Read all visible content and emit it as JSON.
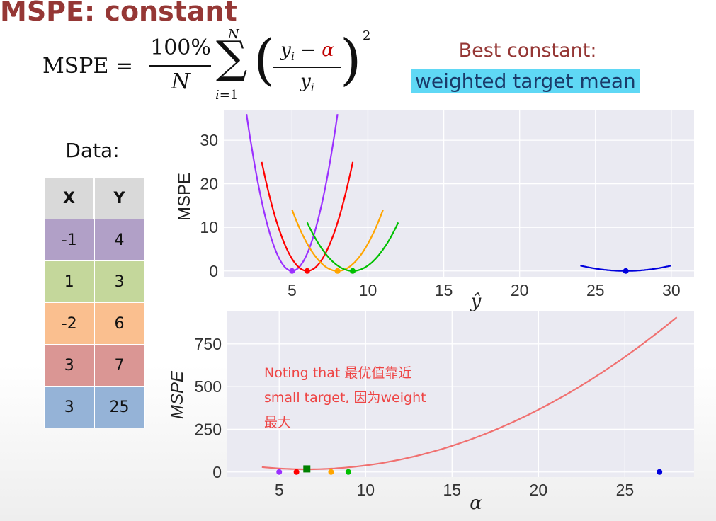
{
  "slide": {
    "title": "MSPE: constant",
    "best_label": "Best constant:",
    "best_highlight": "weighted target mean",
    "note": "Noting that 最优值靠近small target, 因为weight最大"
  },
  "formula": {
    "lhs": "MSPE =",
    "numerator": "100%",
    "denominator": "N",
    "sum_upper": "N",
    "sum_lower": "i=1",
    "inner_num_left": "y",
    "inner_num_sub": "i",
    "inner_minus": " − ",
    "inner_alpha": "α",
    "inner_den": "y",
    "inner_den_sub": "i",
    "exponent": "2"
  },
  "data_table": {
    "caption": "Data:",
    "headers": [
      "X",
      "Y"
    ],
    "rows": [
      {
        "x": "-1",
        "y": "4",
        "color": "#b1a0c7"
      },
      {
        "x": "1",
        "y": "3",
        "color": "#c4d79b"
      },
      {
        "x": "-2",
        "y": "6",
        "color": "#fabf8f"
      },
      {
        "x": "3",
        "y": "7",
        "color": "#da9694"
      },
      {
        "x": "3",
        "y": "25",
        "color": "#95b3d7"
      }
    ]
  },
  "chart_data": [
    {
      "type": "line",
      "xlabel": "ŷ",
      "ylabel": "MSPE",
      "xlim": [
        0.5,
        31.5
      ],
      "ylim": [
        -1.5,
        37
      ],
      "xticks": [
        5,
        10,
        15,
        20,
        25,
        30
      ],
      "yticks": [
        0,
        10,
        20,
        30
      ],
      "grid": true,
      "series": [
        {
          "color": "#9b30ff",
          "target": 5,
          "x_range": [
            2,
            8
          ],
          "min_point": [
            5,
            0
          ]
        },
        {
          "color": "#ff0000",
          "target": 6,
          "x_range": [
            3,
            9
          ],
          "min_point": [
            6,
            0
          ]
        },
        {
          "color": "#ffa500",
          "target": 8,
          "x_range": [
            5,
            11
          ],
          "min_point": [
            8,
            0
          ]
        },
        {
          "color": "#00c000",
          "target": 9,
          "x_range": [
            6,
            12
          ],
          "min_point": [
            9,
            0
          ]
        },
        {
          "color": "#0000dd",
          "target": 27,
          "x_range": [
            24,
            30
          ],
          "min_point": [
            27,
            0
          ]
        }
      ]
    },
    {
      "type": "line",
      "xlabel": "α",
      "ylabel": "MSPE",
      "xlim": [
        2.0,
        29.0
      ],
      "ylim": [
        -30,
        940
      ],
      "xticks": [
        5,
        10,
        15,
        20,
        25
      ],
      "yticks": [
        0,
        250,
        500,
        750
      ],
      "grid": true,
      "curve": {
        "color": "#f07070",
        "x_range": [
          4,
          28
        ],
        "targets": [
          5,
          6,
          8,
          9,
          27
        ]
      },
      "points": [
        {
          "x": 5,
          "y": 0,
          "color": "#9b30ff"
        },
        {
          "x": 6,
          "y": 0,
          "color": "#ff0000"
        },
        {
          "x": 8,
          "y": 0,
          "color": "#ffa500"
        },
        {
          "x": 9,
          "y": 0,
          "color": "#00c000"
        },
        {
          "x": 27,
          "y": 0,
          "color": "#0000dd"
        }
      ],
      "optimum": {
        "x": 6.6,
        "y": 18,
        "color": "#008000"
      }
    }
  ]
}
